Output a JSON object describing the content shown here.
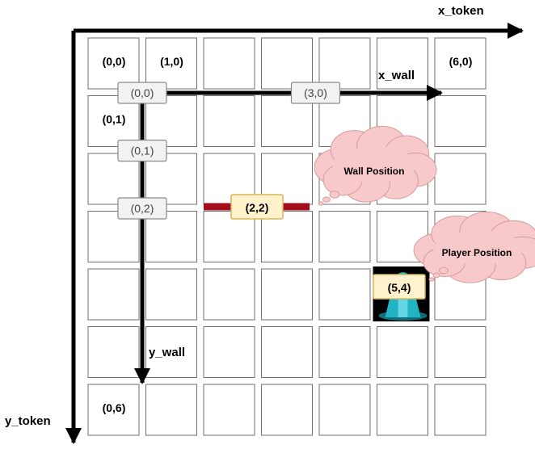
{
  "axes": {
    "x_token_label": "x_token",
    "y_token_label": "y_token",
    "x_wall_label": "x_wall",
    "y_wall_label": "y_wall"
  },
  "grid": {
    "columns": 7,
    "rows": 7
  },
  "cell_labels": [
    {
      "col": 0,
      "row": 0,
      "text": "(0,0)"
    },
    {
      "col": 1,
      "row": 0,
      "text": "(1,0)"
    },
    {
      "col": 6,
      "row": 0,
      "text": "(6,0)"
    },
    {
      "col": 0,
      "row": 1,
      "text": "(0,1)"
    },
    {
      "col": 0,
      "row": 6,
      "text": "(0,6)"
    }
  ],
  "wall_axis_labels": {
    "x": [
      {
        "index": 0,
        "text": "(0,0)"
      },
      {
        "index": 3,
        "text": "(3,0)"
      }
    ],
    "y": [
      {
        "index": 1,
        "text": "(0,1)"
      },
      {
        "index": 2,
        "text": "(0,2)"
      }
    ]
  },
  "wall": {
    "col": 2,
    "row": 2,
    "label": "(2,2)",
    "color": "#a30d1c"
  },
  "player": {
    "col": 5,
    "row": 4,
    "label": "(5,4)"
  },
  "callouts": {
    "wall": "Wall Position",
    "player": "Player Position"
  },
  "colors": {
    "cloud_fill": "#f8c9cb",
    "cloud_stroke": "#d99a9c",
    "tag_fill": "#f2f2f2",
    "tag_stroke": "#8a8a8a",
    "highlight_fill": "#fff2cc",
    "highlight_stroke": "#d6b656",
    "player_teal": "#1fb3c4"
  }
}
